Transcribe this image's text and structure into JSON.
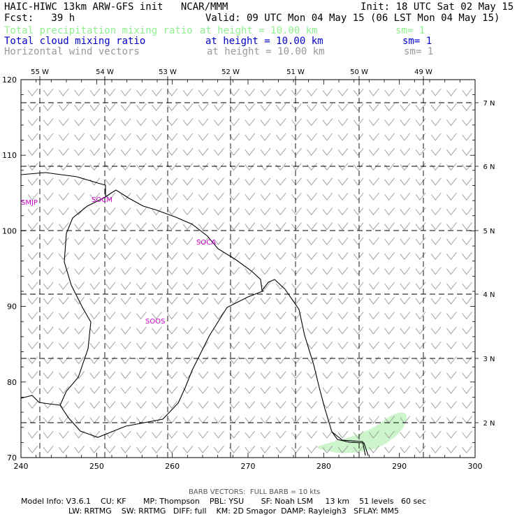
{
  "header": {
    "model_title": "HAIC-HIWC 13km ARW-GFS init   NCAR/MMM",
    "forecast": "Fcst:   39 h",
    "init": "Init: 18 UTC Sat 02 May 15",
    "valid": "Valid: 09 UTC Mon 04 May 15 (06 LST Mon 04 May 15)"
  },
  "fields": [
    {
      "name": "Total precipitation mixing ratio",
      "level": "at height = 10.00 km",
      "smooth": "sm= 1",
      "color": "#90ee90"
    },
    {
      "name": "Total cloud mixing ratio",
      "level": "at height = 10.00 km",
      "smooth": "sm= 1",
      "color": "#0000cd"
    },
    {
      "name": "Horizontal wind vectors",
      "level": "at height = 10.00 km",
      "smooth": "sm= 1",
      "color": "#999999"
    }
  ],
  "map": {
    "x_ticks": [
      "240",
      "250",
      "260",
      "270",
      "280",
      "290",
      "300"
    ],
    "y_ticks": [
      "70",
      "80",
      "90",
      "100",
      "110",
      "120"
    ],
    "lon_labels": [
      "55 W",
      "54 W",
      "53 W",
      "52 W",
      "51 W",
      "50 W",
      "49 W"
    ],
    "lat_labels": [
      "7 N",
      "6 N",
      "5 N",
      "4 N",
      "3 N",
      "2 N"
    ],
    "stations": [
      "SMJP",
      "SOCM",
      "SOCA",
      "SOOS"
    ],
    "coast_color": "#000000",
    "barb_color": "#999999",
    "station_color": "#cc00cc",
    "precip_color": "#ccf5cc"
  },
  "footer": {
    "barb_note": "BARB VECTORS:  FULL BARB = 10 kts",
    "info_line1": "Model Info: V3.6.1    CU: KF       MP: Thompson    PBL: YSU       SF: Noah LSM     13 km    51 levels   60 sec",
    "info_line2": "LW: RRTMG    SW: RRTMG   DIFF: full    KM: 2D Smagor  DAMP: Rayleigh3   SFLAY: MM5"
  }
}
